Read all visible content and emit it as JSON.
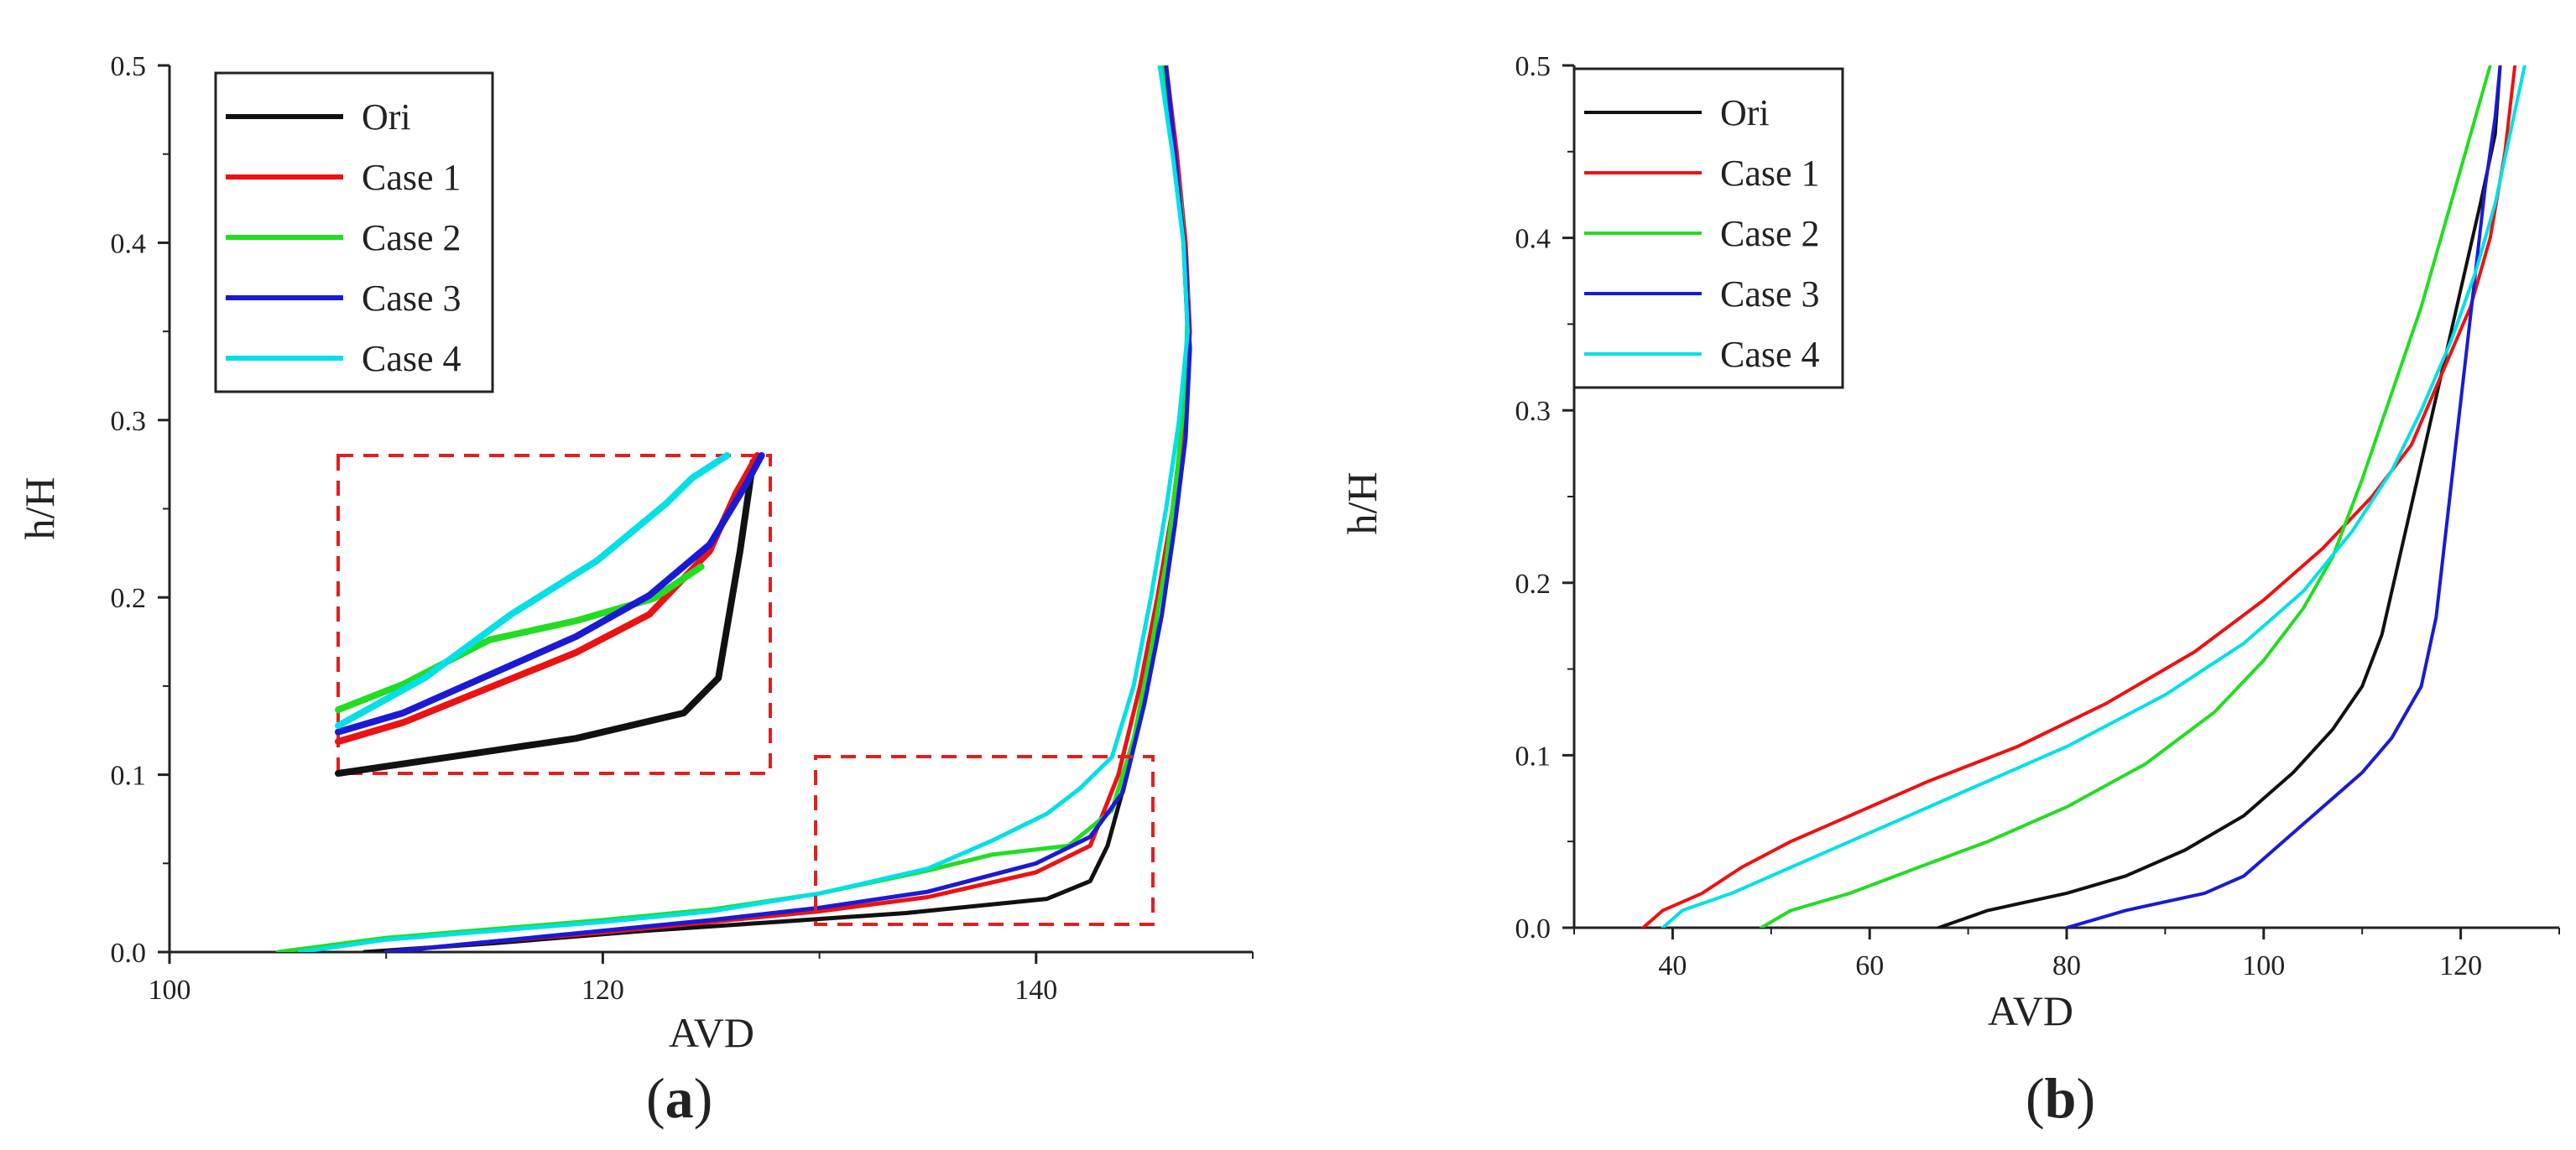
{
  "chart_data": [
    {
      "type": "line",
      "panel": "a",
      "xlabel": "AVD",
      "ylabel": "h/H",
      "xlim": [
        100,
        150
      ],
      "ylim": [
        0,
        0.5
      ],
      "xticks": [
        "100",
        "120",
        "140"
      ],
      "yticks": [
        "0.0",
        "0.1",
        "0.2",
        "0.3",
        "0.4",
        "0.5"
      ],
      "legend_position": "top-left",
      "caption": {
        "open": "(",
        "letter": "a",
        "close": ")"
      },
      "series": [
        {
          "name": "Ori",
          "color": "#111111",
          "points": [
            [
              109,
              0
            ],
            [
              115,
              0.005
            ],
            [
              122,
              0.012
            ],
            [
              128,
              0.017
            ],
            [
              134,
              0.022
            ],
            [
              140.5,
              0.03
            ],
            [
              142.5,
              0.04
            ],
            [
              143.3,
              0.06
            ],
            [
              144.2,
              0.1
            ],
            [
              145.1,
              0.15
            ],
            [
              145.7,
              0.2
            ],
            [
              146.3,
              0.25
            ],
            [
              146.8,
              0.3
            ],
            [
              147.0,
              0.35
            ],
            [
              146.8,
              0.4
            ],
            [
              146.4,
              0.45
            ],
            [
              145.9,
              0.5
            ]
          ]
        },
        {
          "name": "Case 1",
          "color": "#ee1111",
          "points": [
            [
              110,
              0
            ],
            [
              115,
              0.006
            ],
            [
              120,
              0.011
            ],
            [
              125,
              0.017
            ],
            [
              130,
              0.023
            ],
            [
              135,
              0.031
            ],
            [
              140,
              0.045
            ],
            [
              142.5,
              0.06
            ],
            [
              143.8,
              0.1
            ],
            [
              144.8,
              0.15
            ],
            [
              145.6,
              0.2
            ],
            [
              146.3,
              0.25
            ],
            [
              146.8,
              0.3
            ],
            [
              147.1,
              0.35
            ],
            [
              146.9,
              0.4
            ],
            [
              146.5,
              0.45
            ],
            [
              146.0,
              0.5
            ]
          ]
        },
        {
          "name": "Case 2",
          "color": "#22dd22",
          "points": [
            [
              105,
              0
            ],
            [
              110,
              0.008
            ],
            [
              115,
              0.013
            ],
            [
              120,
              0.018
            ],
            [
              125,
              0.024
            ],
            [
              130,
              0.033
            ],
            [
              135,
              0.046
            ],
            [
              138,
              0.055
            ],
            [
              141.5,
              0.06
            ],
            [
              143.5,
              0.08
            ],
            [
              144.5,
              0.12
            ],
            [
              145.3,
              0.17
            ],
            [
              146,
              0.22
            ],
            [
              146.5,
              0.27
            ],
            [
              146.9,
              0.32
            ],
            [
              147.0,
              0.37
            ],
            [
              146.7,
              0.42
            ],
            [
              146.3,
              0.46
            ],
            [
              145.9,
              0.5
            ]
          ]
        },
        {
          "name": "Case 3",
          "color": "#1a1ad6",
          "points": [
            [
              110,
              0
            ],
            [
              115,
              0.006
            ],
            [
              120,
              0.012
            ],
            [
              125,
              0.018
            ],
            [
              130,
              0.025
            ],
            [
              135,
              0.034
            ],
            [
              140,
              0.05
            ],
            [
              142.5,
              0.065
            ],
            [
              144,
              0.09
            ],
            [
              145,
              0.14
            ],
            [
              145.8,
              0.19
            ],
            [
              146.4,
              0.24
            ],
            [
              146.9,
              0.29
            ],
            [
              147.1,
              0.34
            ],
            [
              146.9,
              0.39
            ],
            [
              146.5,
              0.44
            ],
            [
              146.0,
              0.5
            ]
          ]
        },
        {
          "name": "Case 4",
          "color": "#00e0e6",
          "points": [
            [
              106,
              0
            ],
            [
              110,
              0.007
            ],
            [
              115,
              0.012
            ],
            [
              120,
              0.017
            ],
            [
              125,
              0.023
            ],
            [
              130,
              0.033
            ],
            [
              135,
              0.047
            ],
            [
              138,
              0.063
            ],
            [
              140.5,
              0.078
            ],
            [
              142,
              0.092
            ],
            [
              143.5,
              0.11
            ],
            [
              144.5,
              0.15
            ],
            [
              145.3,
              0.2
            ],
            [
              146,
              0.25
            ],
            [
              146.6,
              0.3
            ],
            [
              147.0,
              0.35
            ],
            [
              146.8,
              0.4
            ],
            [
              146.3,
              0.45
            ],
            [
              145.7,
              0.5
            ]
          ]
        }
      ],
      "inset": {
        "description": "magnified view of dashed region",
        "source_region": {
          "x": [
            130,
            145
          ],
          "y": [
            0.015,
            0.11
          ]
        },
        "series": [
          {
            "name": "Ori",
            "color": "#111111",
            "points": [
              [
                0,
                0
              ],
              [
                0.1,
                0.02
              ],
              [
                0.3,
                0.06
              ],
              [
                0.55,
                0.11
              ],
              [
                0.8,
                0.19
              ],
              [
                0.88,
                0.3
              ],
              [
                0.93,
                0.7
              ],
              [
                0.96,
                0.98
              ]
            ]
          },
          {
            "name": "Case 1",
            "color": "#ee1111",
            "points": [
              [
                0,
                0.1
              ],
              [
                0.15,
                0.16
              ],
              [
                0.35,
                0.27
              ],
              [
                0.55,
                0.38
              ],
              [
                0.72,
                0.5
              ],
              [
                0.86,
                0.7
              ],
              [
                0.92,
                0.88
              ],
              [
                0.97,
                1.0
              ]
            ]
          },
          {
            "name": "Case 2",
            "color": "#22dd22",
            "points": [
              [
                0,
                0.2
              ],
              [
                0.15,
                0.28
              ],
              [
                0.35,
                0.42
              ],
              [
                0.55,
                0.48
              ],
              [
                0.73,
                0.55
              ],
              [
                0.84,
                0.65
              ]
            ]
          },
          {
            "name": "Case 3",
            "color": "#1a1ad6",
            "points": [
              [
                0,
                0.13
              ],
              [
                0.15,
                0.19
              ],
              [
                0.35,
                0.31
              ],
              [
                0.55,
                0.43
              ],
              [
                0.72,
                0.56
              ],
              [
                0.86,
                0.72
              ],
              [
                0.94,
                0.9
              ],
              [
                0.98,
                1.0
              ]
            ]
          },
          {
            "name": "Case 4",
            "color": "#00e0e6",
            "points": [
              [
                0,
                0.15
              ],
              [
                0.2,
                0.3
              ],
              [
                0.4,
                0.5
              ],
              [
                0.6,
                0.67
              ],
              [
                0.76,
                0.85
              ],
              [
                0.82,
                0.93
              ],
              [
                0.9,
                1.0
              ]
            ]
          }
        ]
      }
    },
    {
      "type": "line",
      "panel": "b",
      "xlabel": "AVD",
      "ylabel": "h/H",
      "xlim": [
        30,
        130
      ],
      "ylim": [
        0,
        0.5
      ],
      "xticks": [
        "40",
        "60",
        "80",
        "100",
        "120"
      ],
      "yticks": [
        "0.0",
        "0.1",
        "0.2",
        "0.3",
        "0.4",
        "0.5"
      ],
      "legend_position": "top-left",
      "caption": {
        "open": "(",
        "letter": "b",
        "close": ")"
      },
      "series": [
        {
          "name": "Ori",
          "color": "#111111",
          "points": [
            [
              67,
              0
            ],
            [
              72,
              0.01
            ],
            [
              80,
              0.02
            ],
            [
              86,
              0.03
            ],
            [
              92,
              0.045
            ],
            [
              98,
              0.065
            ],
            [
              103,
              0.09
            ],
            [
              107,
              0.115
            ],
            [
              110,
              0.14
            ],
            [
              112,
              0.17
            ],
            [
              114,
              0.22
            ],
            [
              116,
              0.27
            ],
            [
              118,
              0.32
            ],
            [
              120,
              0.37
            ],
            [
              122,
              0.42
            ],
            [
              123.5,
              0.46
            ],
            [
              124,
              0.5
            ]
          ]
        },
        {
          "name": "Case 1",
          "color": "#ee1111",
          "points": [
            [
              37,
              0
            ],
            [
              39,
              0.01
            ],
            [
              43,
              0.02
            ],
            [
              47,
              0.035
            ],
            [
              52,
              0.05
            ],
            [
              58,
              0.065
            ],
            [
              66,
              0.085
            ],
            [
              75,
              0.105
            ],
            [
              84,
              0.13
            ],
            [
              93,
              0.16
            ],
            [
              100,
              0.19
            ],
            [
              106,
              0.22
            ],
            [
              111,
              0.25
            ],
            [
              115,
              0.28
            ],
            [
              118,
              0.32
            ],
            [
              121,
              0.36
            ],
            [
              123,
              0.4
            ],
            [
              124.5,
              0.45
            ],
            [
              125.5,
              0.5
            ]
          ]
        },
        {
          "name": "Case 2",
          "color": "#22dd22",
          "points": [
            [
              49,
              0
            ],
            [
              52,
              0.01
            ],
            [
              58,
              0.02
            ],
            [
              64,
              0.033
            ],
            [
              72,
              0.05
            ],
            [
              80,
              0.07
            ],
            [
              88,
              0.095
            ],
            [
              95,
              0.125
            ],
            [
              100,
              0.155
            ],
            [
              104,
              0.185
            ],
            [
              107,
              0.215
            ],
            [
              110,
              0.26
            ],
            [
              113,
              0.31
            ],
            [
              116,
              0.36
            ],
            [
              118.5,
              0.41
            ],
            [
              120.5,
              0.45
            ],
            [
              123,
              0.5
            ]
          ]
        },
        {
          "name": "Case 3",
          "color": "#1a1ad6",
          "points": [
            [
              80,
              0
            ],
            [
              86,
              0.01
            ],
            [
              94,
              0.02
            ],
            [
              98,
              0.03
            ],
            [
              103,
              0.055
            ],
            [
              110,
              0.09
            ],
            [
              113,
              0.11
            ],
            [
              116,
              0.14
            ],
            [
              117.5,
              0.18
            ],
            [
              118.5,
              0.23
            ],
            [
              119.5,
              0.28
            ],
            [
              120.5,
              0.33
            ],
            [
              121.5,
              0.38
            ],
            [
              122.5,
              0.43
            ],
            [
              123.5,
              0.47
            ],
            [
              124,
              0.5
            ]
          ]
        },
        {
          "name": "Case 4",
          "color": "#00e0e6",
          "points": [
            [
              39,
              0
            ],
            [
              41,
              0.01
            ],
            [
              46,
              0.02
            ],
            [
              52,
              0.035
            ],
            [
              60,
              0.055
            ],
            [
              70,
              0.08
            ],
            [
              80,
              0.105
            ],
            [
              90,
              0.135
            ],
            [
              98,
              0.165
            ],
            [
              104,
              0.195
            ],
            [
              109,
              0.23
            ],
            [
              113,
              0.265
            ],
            [
              116,
              0.3
            ],
            [
              119,
              0.34
            ],
            [
              121.5,
              0.38
            ],
            [
              123.5,
              0.42
            ],
            [
              125,
              0.46
            ],
            [
              126.5,
              0.5
            ]
          ]
        }
      ]
    }
  ]
}
